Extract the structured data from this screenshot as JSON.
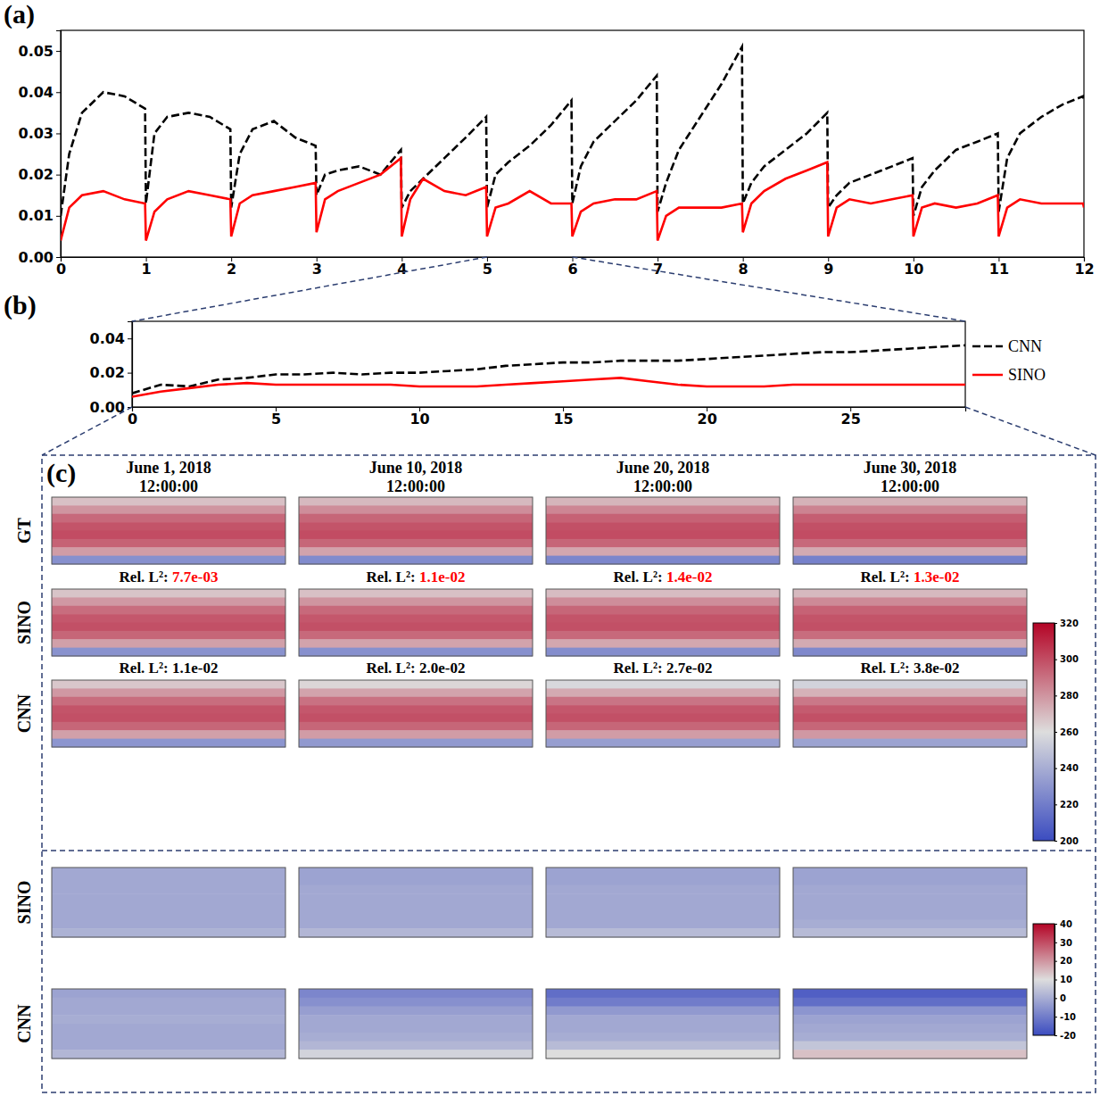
{
  "chart_data": [
    {
      "type": "line",
      "panel_label": "(a)",
      "x": [
        0,
        0.1,
        0.25,
        0.5,
        0.75,
        0.99,
        1,
        1.1,
        1.25,
        1.5,
        1.75,
        1.99,
        2,
        2.1,
        2.25,
        2.5,
        2.75,
        2.99,
        3,
        3.1,
        3.25,
        3.5,
        3.75,
        3.99,
        4,
        4.1,
        4.25,
        4.5,
        4.75,
        4.99,
        5,
        5.1,
        5.25,
        5.5,
        5.75,
        5.99,
        6,
        6.1,
        6.25,
        6.5,
        6.75,
        6.99,
        7,
        7.1,
        7.25,
        7.5,
        7.75,
        7.99,
        8,
        8.1,
        8.25,
        8.5,
        8.75,
        8.99,
        9,
        9.1,
        9.25,
        9.5,
        9.75,
        9.99,
        10,
        10.1,
        10.25,
        10.5,
        10.75,
        10.99,
        11,
        11.1,
        11.25,
        11.5,
        11.75,
        11.99,
        12
      ],
      "series": [
        {
          "name": "CNN",
          "color": "#000000",
          "line_style": "dashed",
          "values": [
            0.01,
            0.025,
            0.035,
            0.04,
            0.039,
            0.036,
            0.013,
            0.03,
            0.034,
            0.035,
            0.034,
            0.031,
            0.012,
            0.025,
            0.031,
            0.033,
            0.029,
            0.027,
            0.015,
            0.02,
            0.021,
            0.022,
            0.02,
            0.026,
            0.012,
            0.016,
            0.019,
            0.024,
            0.029,
            0.034,
            0.012,
            0.02,
            0.023,
            0.027,
            0.032,
            0.038,
            0.013,
            0.022,
            0.028,
            0.033,
            0.038,
            0.044,
            0.011,
            0.018,
            0.026,
            0.034,
            0.042,
            0.051,
            0.013,
            0.018,
            0.022,
            0.026,
            0.03,
            0.035,
            0.012,
            0.015,
            0.018,
            0.02,
            0.022,
            0.024,
            0.01,
            0.017,
            0.021,
            0.026,
            0.028,
            0.03,
            0.011,
            0.024,
            0.03,
            0.034,
            0.037,
            0.039,
            0.038
          ]
        },
        {
          "name": "SINO",
          "color": "#ff0000",
          "line_style": "solid",
          "values": [
            0.004,
            0.012,
            0.015,
            0.016,
            0.014,
            0.013,
            0.004,
            0.011,
            0.014,
            0.016,
            0.015,
            0.014,
            0.005,
            0.013,
            0.015,
            0.016,
            0.017,
            0.018,
            0.006,
            0.014,
            0.016,
            0.018,
            0.02,
            0.024,
            0.005,
            0.014,
            0.019,
            0.016,
            0.015,
            0.017,
            0.005,
            0.012,
            0.013,
            0.016,
            0.013,
            0.013,
            0.005,
            0.011,
            0.013,
            0.014,
            0.014,
            0.016,
            0.004,
            0.01,
            0.012,
            0.012,
            0.012,
            0.013,
            0.006,
            0.013,
            0.016,
            0.019,
            0.021,
            0.023,
            0.005,
            0.012,
            0.014,
            0.013,
            0.014,
            0.015,
            0.005,
            0.012,
            0.013,
            0.012,
            0.013,
            0.015,
            0.005,
            0.012,
            0.014,
            0.013,
            0.013,
            0.013,
            0.012
          ]
        }
      ],
      "xlim": [
        0,
        12
      ],
      "xticks": [
        0,
        1,
        2,
        3,
        4,
        5,
        6,
        7,
        8,
        9,
        10,
        11,
        12
      ],
      "ylim": [
        0,
        0.055
      ],
      "yticks": [
        {
          "value": 0,
          "label": "0.00"
        },
        {
          "value": 0.01,
          "label": "0.01"
        },
        {
          "value": 0.02,
          "label": "0.02"
        },
        {
          "value": 0.03,
          "label": "0.03"
        },
        {
          "value": 0.04,
          "label": "0.04"
        },
        {
          "value": 0.05,
          "label": "0.05"
        }
      ],
      "zoom_x": [
        5,
        6
      ]
    },
    {
      "type": "line",
      "panel_label": "(b)",
      "x": [
        0,
        1,
        2,
        3,
        4,
        5,
        6,
        7,
        8,
        9,
        10,
        11,
        12,
        13,
        14,
        15,
        16,
        17,
        18,
        19,
        20,
        21,
        22,
        23,
        24,
        25,
        26,
        27,
        28,
        29
      ],
      "series": [
        {
          "name": "CNN",
          "color": "#000000",
          "line_style": "dashed",
          "values": [
            0.008,
            0.013,
            0.012,
            0.016,
            0.017,
            0.019,
            0.019,
            0.02,
            0.019,
            0.02,
            0.02,
            0.021,
            0.022,
            0.024,
            0.025,
            0.026,
            0.026,
            0.027,
            0.027,
            0.027,
            0.028,
            0.029,
            0.03,
            0.031,
            0.032,
            0.032,
            0.033,
            0.034,
            0.035,
            0.036
          ]
        },
        {
          "name": "SINO",
          "color": "#ff0000",
          "line_style": "solid",
          "values": [
            0.006,
            0.009,
            0.011,
            0.013,
            0.014,
            0.013,
            0.013,
            0.013,
            0.013,
            0.013,
            0.012,
            0.012,
            0.012,
            0.013,
            0.014,
            0.015,
            0.016,
            0.017,
            0.015,
            0.013,
            0.012,
            0.012,
            0.012,
            0.013,
            0.013,
            0.013,
            0.013,
            0.013,
            0.013,
            0.013
          ]
        }
      ],
      "xlim": [
        0,
        29
      ],
      "xticks": [
        0,
        5,
        10,
        15,
        20,
        25
      ],
      "ylim": [
        0,
        0.05
      ],
      "yticks": [
        {
          "value": 0,
          "label": "0.00"
        },
        {
          "value": 0.02,
          "label": "0.02"
        },
        {
          "value": 0.04,
          "label": "0.04"
        }
      ],
      "legend": "right"
    },
    {
      "type": "heatmap",
      "panel_label": "(c)",
      "columns": [
        {
          "date": "June 1, 2018",
          "time": "12:00:00"
        },
        {
          "date": "June 10, 2018",
          "time": "12:00:00"
        },
        {
          "date": "June 20, 2018",
          "time": "12:00:00"
        },
        {
          "date": "June 30, 2018",
          "time": "12:00:00"
        }
      ],
      "metric_label": "Rel. L²:",
      "field_rows": [
        {
          "name": "GT",
          "cells": [
            [
              268,
              280,
              292,
              298,
              300,
              294,
              278,
              228
            ],
            [
              270,
              282,
              293,
              298,
              300,
              293,
              276,
              226
            ],
            [
              271,
              284,
              294,
              299,
              300,
              293,
              275,
              224
            ],
            [
              272,
              285,
              295,
              299,
              300,
              292,
              274,
              222
            ]
          ]
        },
        {
          "name": "SINO",
          "color": "#ff0000",
          "rel_l2": [
            0.0077,
            0.011,
            0.014,
            0.013
          ],
          "value_labels": [
            "7.7e-03",
            "1.1e-02",
            "1.4e-02",
            "1.3e-02"
          ],
          "cells": [
            [
              267,
              279,
              291,
              297,
              299,
              293,
              277,
              229
            ],
            [
              268,
              280,
              292,
              297,
              299,
              292,
              276,
              228
            ],
            [
              269,
              282,
              293,
              298,
              299,
              292,
              275,
              227
            ],
            [
              270,
              283,
              294,
              298,
              299,
              291,
              274,
              225
            ]
          ]
        },
        {
          "name": "CNN",
          "color": "#000000",
          "rel_l2": [
            0.011,
            0.02,
            0.027,
            0.038
          ],
          "value_labels": [
            "1.1e-02",
            "2.0e-02",
            "2.7e-02",
            "3.8e-02"
          ],
          "cells": [
            [
              266,
              279,
              291,
              298,
              299,
              293,
              277,
              230
            ],
            [
              262,
              276,
              290,
              297,
              299,
              293,
              278,
              232
            ],
            [
              258,
              274,
              289,
              297,
              299,
              293,
              278,
              234
            ],
            [
              256,
              272,
              288,
              296,
              299,
              293,
              279,
              236
            ]
          ]
        }
      ],
      "field_colorbar": {
        "range": [
          200,
          320
        ],
        "ticks": [
          200,
          220,
          240,
          260,
          280,
          300,
          320
        ]
      },
      "error_rows": [
        {
          "name": "SINO",
          "cells": [
            [
              -1,
              -1,
              -1,
              -1,
              -1,
              -1,
              -1,
              1
            ],
            [
              -2,
              -2,
              -1,
              -1,
              -1,
              -1,
              -1,
              2
            ],
            [
              -2,
              -2,
              -1,
              -1,
              -1,
              -1,
              -1,
              3
            ],
            [
              -2,
              -2,
              -1,
              -1,
              -1,
              -1,
              0,
              3
            ]
          ]
        },
        {
          "name": "CNN",
          "cells": [
            [
              -2,
              -1,
              -1,
              0,
              -1,
              -1,
              -1,
              2
            ],
            [
              -8,
              -6,
              -3,
              -1,
              -1,
              0,
              2,
              8
            ],
            [
              -13,
              -10,
              -4,
              -1,
              -1,
              0,
              3,
              10
            ],
            [
              -16,
              -13,
              -5,
              -2,
              -1,
              0,
              5,
              14
            ]
          ]
        }
      ],
      "error_colorbar": {
        "range": [
          -20,
          40
        ],
        "ticks": [
          -20,
          -10,
          0,
          10,
          20,
          30,
          40
        ]
      }
    }
  ]
}
